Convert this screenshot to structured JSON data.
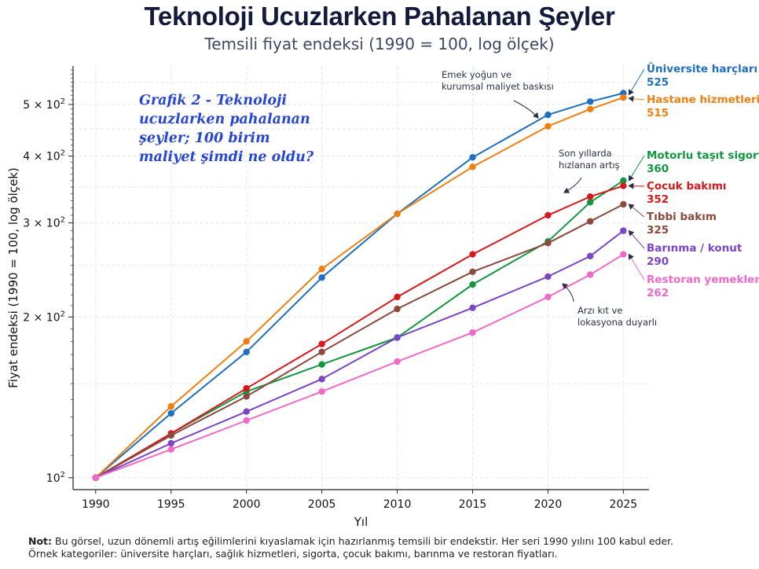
{
  "chart_data": {
    "type": "line",
    "title": "Teknoloji Ucuzlarken Pahalanan Şeyler",
    "subtitle": "Temsili fiyat endeksi (1990 = 100, log ölçek)",
    "xlabel": "Yıl",
    "ylabel": "Fiyat endeksi (1990 = 100, log ölçek)",
    "x_ticks": [
      "1990",
      "1995",
      "2000",
      "2005",
      "2010",
      "2015",
      "2020",
      "2025"
    ],
    "y_scale": "log",
    "ylim": [
      95,
      590
    ],
    "xlim": [
      1988.5,
      2026.7
    ],
    "y_ticks": [
      {
        "value": 100,
        "base": "10",
        "exp": "2"
      },
      {
        "value": 200,
        "base": "2 × 10",
        "exp": "2"
      },
      {
        "value": 300,
        "base": "3 × 10",
        "exp": "2"
      },
      {
        "value": 400,
        "base": "4 × 10",
        "exp": "2"
      },
      {
        "value": 500,
        "base": "5 × 10",
        "exp": "2"
      }
    ],
    "grid": true,
    "series": [
      {
        "name": "Üniversite harçları",
        "color": "#1f6fbf",
        "final": "525",
        "x": [
          1990,
          1995,
          2000,
          2005,
          2010,
          2015,
          2020,
          2022.8,
          2025
        ],
        "values": [
          100,
          132,
          172,
          237,
          312,
          398,
          478,
          506,
          525
        ]
      },
      {
        "name": "Hastane hizmetleri",
        "color": "#f07f12",
        "final": "515",
        "x": [
          1990,
          1995,
          2000,
          2005,
          2010,
          2015,
          2020,
          2022.8,
          2025
        ],
        "values": [
          100,
          136,
          180,
          246,
          312,
          382,
          455,
          490,
          515
        ]
      },
      {
        "name": "Motorlu taşıt sigortası",
        "color": "#12963f",
        "final": "360",
        "x": [
          1990,
          1995,
          2000,
          2005,
          2010,
          2015,
          2020,
          2022.8,
          2025
        ],
        "values": [
          100,
          121,
          145,
          163,
          183,
          230,
          277,
          328,
          360
        ]
      },
      {
        "name": "Çocuk bakımı",
        "color": "#d7191c",
        "final": "352",
        "x": [
          1990,
          1995,
          2000,
          2005,
          2010,
          2015,
          2020,
          2022.8,
          2025
        ],
        "values": [
          100,
          121,
          147,
          178,
          218,
          262,
          310,
          336,
          352
        ]
      },
      {
        "name": "Tıbbi bakım",
        "color": "#8b4a3c",
        "final": "325",
        "x": [
          1990,
          1995,
          2000,
          2005,
          2010,
          2015,
          2020,
          2022.8,
          2025
        ],
        "values": [
          100,
          120,
          142,
          172,
          207,
          243,
          275,
          302,
          325
        ]
      },
      {
        "name": "Barınma / konut",
        "color": "#7b45c4",
        "final": "290",
        "x": [
          1990,
          1995,
          2000,
          2005,
          2010,
          2015,
          2020,
          2022.8,
          2025
        ],
        "values": [
          100,
          116,
          133,
          153,
          183,
          208,
          238,
          260,
          290
        ]
      },
      {
        "name": "Restoran yemekleri",
        "color": "#f069c8",
        "final": "262",
        "x": [
          1990,
          1995,
          2000,
          2005,
          2010,
          2015,
          2020,
          2022.8,
          2025
        ],
        "values": [
          100,
          113,
          128,
          145,
          165,
          187,
          218,
          240,
          262
        ]
      }
    ],
    "annotations": [
      {
        "lines": [
          "Emek yoğun ve",
          "kurumsal maliyet baskısı"
        ]
      },
      {
        "lines": [
          "Son yıllarda",
          "hızlanan artış"
        ]
      },
      {
        "lines": [
          "Arzı kıt ve",
          "lokasyona duyarlı"
        ]
      }
    ],
    "box_text": [
      "Grafik 2 - Teknoloji",
      "ucuzlarken pahalanan",
      "şeyler; 100 birim",
      "maliyet şimdi ne oldu?"
    ]
  },
  "note": {
    "label": "Not:",
    "line1": "Bu görsel, uzun dönemli artış eğilimlerini kıyaslamak için hazırlanmış temsili bir endekstir. Her seri 1990 yılını 100 kabul eder.",
    "line2": "Örnek kategoriler: üniversite harçları, sağlık hizmetleri, sigorta, çocuk bakımı, barınma ve restoran fiyatları."
  },
  "colors": {
    "title": "#141a3b",
    "grid": "#e6e6ec",
    "box_text": "#2745d6"
  }
}
